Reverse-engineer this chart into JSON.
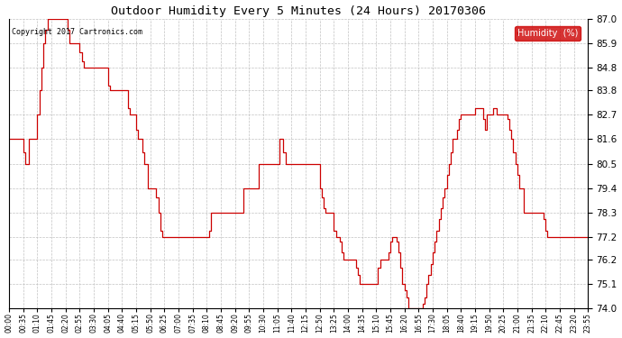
{
  "title": "Outdoor Humidity Every 5 Minutes (24 Hours) 20170306",
  "copyright_text": "Copyright 2017 Cartronics.com",
  "legend_label": "Humidity  (%)",
  "legend_bg": "#CC0000",
  "legend_text_color": "#FFFFFF",
  "line_color": "#CC0000",
  "background_color": "#FFFFFF",
  "grid_color": "#BBBBBB",
  "ylim": [
    74.0,
    87.0
  ],
  "yticks": [
    74.0,
    75.1,
    76.2,
    77.2,
    78.3,
    79.4,
    80.5,
    81.6,
    82.7,
    83.8,
    84.8,
    85.9,
    87.0
  ],
  "n_points": 288,
  "humidity_data": [
    81.6,
    81.6,
    81.6,
    81.6,
    81.6,
    81.6,
    81.6,
    81.0,
    80.5,
    80.5,
    81.6,
    81.6,
    81.6,
    81.6,
    82.7,
    83.8,
    84.8,
    85.9,
    86.5,
    87.0,
    87.0,
    87.0,
    87.0,
    87.0,
    87.0,
    87.0,
    87.0,
    87.0,
    87.0,
    86.5,
    85.9,
    85.9,
    85.9,
    85.9,
    85.9,
    85.5,
    85.1,
    84.8,
    84.8,
    84.8,
    84.8,
    84.8,
    84.8,
    84.8,
    84.8,
    84.8,
    84.8,
    84.8,
    84.8,
    84.0,
    83.8,
    83.8,
    83.8,
    83.8,
    83.8,
    83.8,
    83.8,
    83.8,
    83.8,
    83.0,
    82.7,
    82.7,
    82.7,
    82.0,
    81.6,
    81.6,
    81.0,
    80.5,
    80.5,
    79.4,
    79.4,
    79.4,
    79.4,
    79.0,
    78.3,
    77.5,
    77.2,
    77.2,
    77.2,
    77.2,
    77.2,
    77.2,
    77.2,
    77.2,
    77.2,
    77.2,
    77.2,
    77.2,
    77.2,
    77.2,
    77.2,
    77.2,
    77.2,
    77.2,
    77.2,
    77.2,
    77.2,
    77.2,
    77.2,
    77.5,
    78.3,
    78.3,
    78.3,
    78.3,
    78.3,
    78.3,
    78.3,
    78.3,
    78.3,
    78.3,
    78.3,
    78.3,
    78.3,
    78.3,
    78.3,
    78.3,
    79.4,
    79.4,
    79.4,
    79.4,
    79.4,
    79.4,
    79.4,
    79.4,
    80.5,
    80.5,
    80.5,
    80.5,
    80.5,
    80.5,
    80.5,
    80.5,
    80.5,
    80.5,
    81.6,
    81.6,
    81.0,
    80.5,
    80.5,
    80.5,
    80.5,
    80.5,
    80.5,
    80.5,
    80.5,
    80.5,
    80.5,
    80.5,
    80.5,
    80.5,
    80.5,
    80.5,
    80.5,
    80.5,
    79.4,
    79.0,
    78.5,
    78.3,
    78.3,
    78.3,
    78.3,
    77.5,
    77.2,
    77.2,
    77.0,
    76.5,
    76.2,
    76.2,
    76.2,
    76.2,
    76.2,
    76.2,
    75.8,
    75.5,
    75.1,
    75.1,
    75.1,
    75.1,
    75.1,
    75.1,
    75.1,
    75.1,
    75.1,
    75.8,
    76.2,
    76.2,
    76.2,
    76.2,
    76.5,
    77.0,
    77.2,
    77.2,
    77.0,
    76.5,
    75.8,
    75.1,
    74.8,
    74.5,
    74.0,
    74.0,
    74.0,
    74.0,
    74.0,
    74.0,
    74.0,
    74.2,
    74.5,
    75.1,
    75.5,
    76.0,
    76.5,
    77.0,
    77.5,
    78.0,
    78.5,
    79.0,
    79.4,
    80.0,
    80.5,
    81.0,
    81.6,
    81.6,
    82.0,
    82.5,
    82.7,
    82.7,
    82.7,
    82.7,
    82.7,
    82.7,
    82.7,
    83.0,
    83.0,
    83.0,
    83.0,
    82.5,
    82.0,
    82.7,
    82.7,
    82.7,
    83.0,
    83.0,
    82.7,
    82.7,
    82.7,
    82.7,
    82.7,
    82.5,
    82.0,
    81.6,
    81.0,
    80.5,
    80.0,
    79.4,
    79.4,
    78.3,
    78.3,
    78.3,
    78.3,
    78.3,
    78.3,
    78.3,
    78.3,
    78.3,
    78.3,
    78.0,
    77.5,
    77.2,
    77.2,
    77.2,
    77.2,
    77.2,
    77.2,
    77.2,
    77.2,
    77.2,
    77.2,
    77.2,
    77.2,
    77.2,
    77.2,
    77.2,
    77.2,
    77.2,
    77.2,
    77.2,
    77.2,
    77.2
  ],
  "x_tick_labels": [
    "00:00",
    "00:35",
    "01:10",
    "01:45",
    "02:20",
    "02:55",
    "03:30",
    "04:05",
    "04:40",
    "05:15",
    "05:50",
    "06:25",
    "07:00",
    "07:35",
    "08:10",
    "08:45",
    "09:20",
    "09:55",
    "10:30",
    "11:05",
    "11:40",
    "12:15",
    "12:50",
    "13:25",
    "14:00",
    "14:35",
    "15:10",
    "15:45",
    "16:20",
    "16:55",
    "17:30",
    "18:05",
    "18:40",
    "19:15",
    "19:50",
    "20:25",
    "21:00",
    "21:35",
    "22:10",
    "22:45",
    "23:20",
    "23:55"
  ]
}
